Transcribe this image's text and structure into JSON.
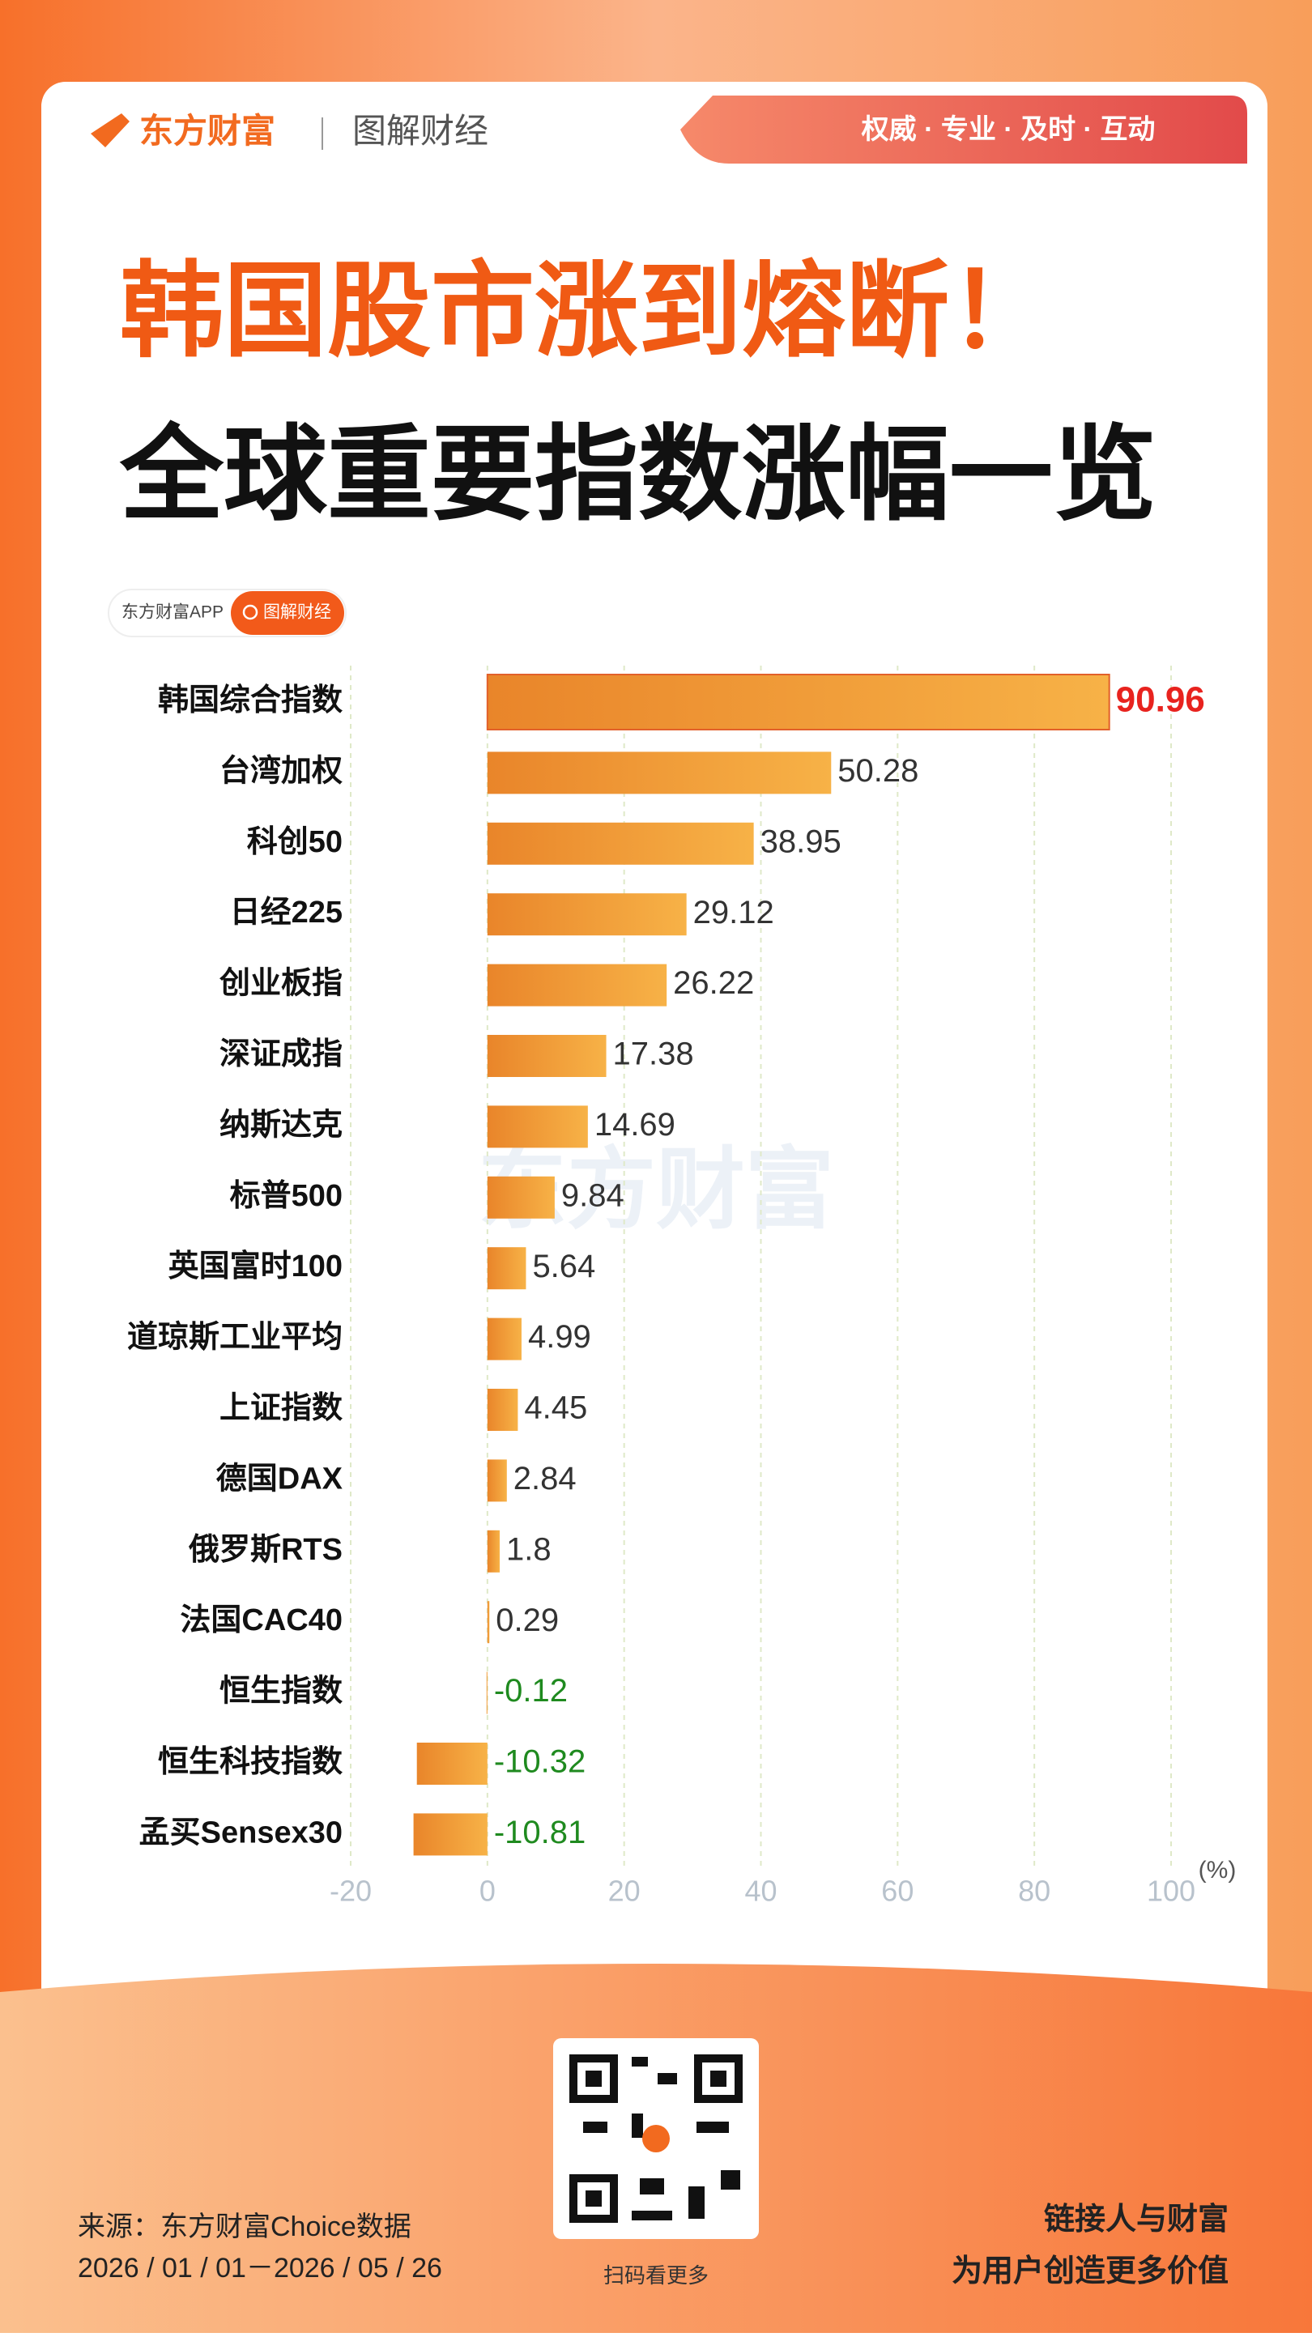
{
  "header": {
    "brand": "东方财富",
    "section": "图解财经",
    "slogan": "权威 · 专业 · 及时 · 互动"
  },
  "title": "韩国股市涨到熔断！",
  "subtitle": "全球重要指数涨幅一览",
  "badge": {
    "app": "东方财富APP",
    "search": "图解财经"
  },
  "watermark": "东方财富",
  "chart_data": {
    "type": "bar",
    "orientation": "horizontal",
    "categories": [
      "韩国综合指数",
      "台湾加权",
      "科创50",
      "日经225",
      "创业板指",
      "深证成指",
      "纳斯达克",
      "标普500",
      "英国富时100",
      "道琼斯工业平均",
      "上证指数",
      "德国DAX",
      "俄罗斯RTS",
      "法国CAC40",
      "恒生指数",
      "恒生科技指数",
      "孟买Sensex30"
    ],
    "values": [
      90.96,
      50.28,
      38.95,
      29.12,
      26.22,
      17.38,
      14.69,
      9.84,
      5.64,
      4.99,
      4.45,
      2.84,
      1.8,
      0.29,
      -0.12,
      -10.32,
      -10.81
    ],
    "color": "#f08a24",
    "highlight_color": "#e8231e",
    "negative_label_color": "#1f8a1f",
    "xlim": [
      -20,
      100
    ],
    "xticks": [
      -20,
      0,
      20,
      40,
      60,
      80,
      100
    ],
    "x_unit": "(%)",
    "grid": true
  },
  "footer": {
    "source": "来源：东方财富Choice数据",
    "period": "2026 / 01 / 01－2026 / 05 / 26",
    "qr_caption": "扫码看更多",
    "motto1": "链接人与财富",
    "motto2": "为用户创造更多价值"
  }
}
